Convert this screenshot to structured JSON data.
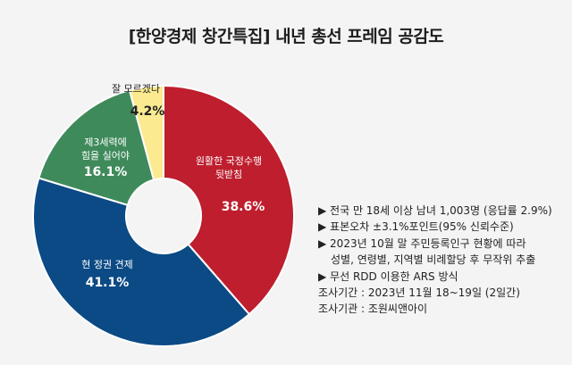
{
  "title": "[한양경제 창간특집] 내년 총선 프레임 공감도",
  "chart_data": {
    "type": "pie",
    "title": "[한양경제 창간특집] 내년 총선 프레임 공감도",
    "donut": true,
    "slices": [
      {
        "label_lines": [
          "원활한 국정수행",
          "뒷받침"
        ],
        "value": 38.6,
        "value_label": "38.6%",
        "color": "#be1e2d"
      },
      {
        "label_lines": [
          "현 정권 견제"
        ],
        "value": 41.1,
        "value_label": "41.1%",
        "color": "#0b4a84"
      },
      {
        "label_lines": [
          "제3세력에",
          "힘을 실어야"
        ],
        "value": 16.1,
        "value_label": "16.1%",
        "color": "#3f8a5b"
      },
      {
        "label_lines": [
          "잘 모르겠다"
        ],
        "value": 4.2,
        "value_label": "4.2%",
        "color": "#fbea8f"
      }
    ]
  },
  "notes": {
    "items": [
      "▶ 전국 만 18세 이상 남녀 1,003명 (응답률 2.9%)",
      "▶ 표본오차 ±3.1%포인트(95% 신뢰수준)",
      "▶ 2023년 10월 말 주민등록인구 현황에 따라",
      "성별, 연령별, 지역별 비례할당 후 무작위 추출",
      "▶ 무선 RDD 이용한 ARS 방식",
      "조사기간 : 2023년 11월 18~19일 (2일간)",
      "조사기관 : 조원씨앤아이"
    ]
  }
}
